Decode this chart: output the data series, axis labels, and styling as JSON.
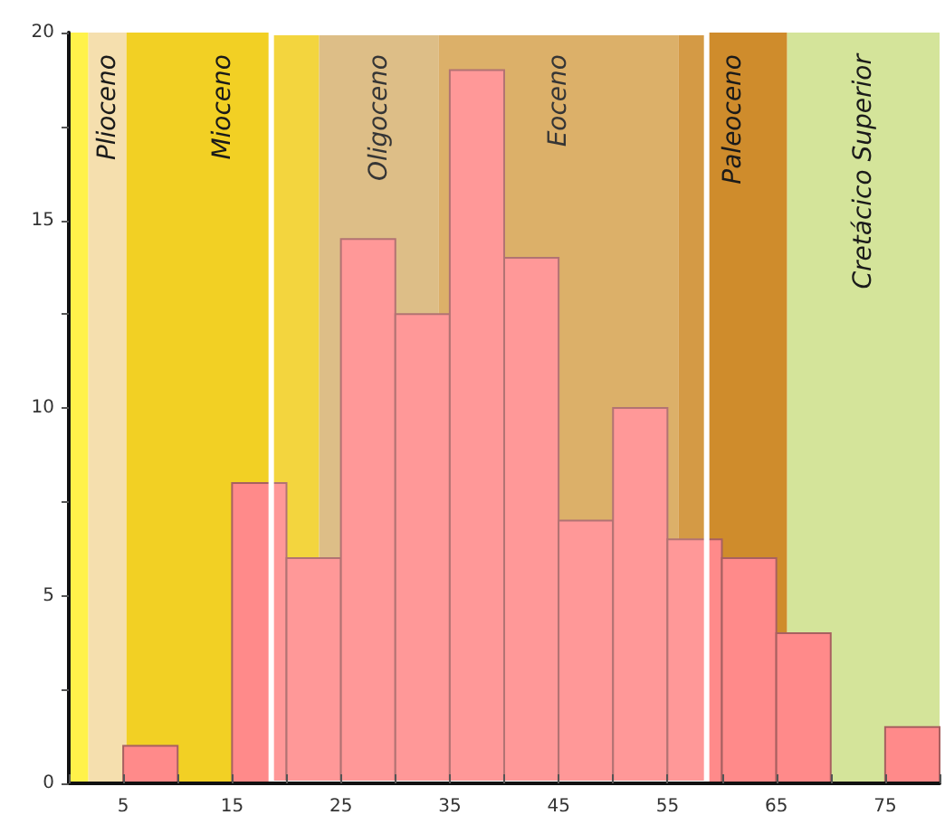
{
  "chart_data": {
    "type": "histogram",
    "bins": [
      0,
      5,
      10,
      15,
      20,
      25,
      30,
      35,
      40,
      45,
      50,
      55,
      60,
      65,
      70,
      75,
      80
    ],
    "values": [
      0,
      1,
      0,
      8,
      6,
      14.5,
      12.5,
      19,
      14,
      7,
      10,
      6.5,
      6,
      4,
      0,
      1.5
    ],
    "color": "#ff8a8a",
    "xlim": [
      0,
      80
    ],
    "xticks": [
      {
        "value": 0,
        "label": null
      },
      5,
      {
        "value": 10,
        "label": null
      },
      15,
      {
        "value": 20,
        "label": null
      },
      25,
      {
        "value": 30,
        "label": null
      },
      35,
      {
        "value": 40,
        "label": null
      },
      45,
      {
        "value": 50,
        "label": null
      },
      55,
      {
        "value": 60,
        "label": null
      },
      65,
      {
        "value": 70,
        "label": null
      },
      75,
      {
        "value": 80,
        "label": null
      }
    ],
    "ylim": [
      0,
      20
    ],
    "yticks": [
      0,
      {
        "value": 2.5,
        "label": null
      },
      5,
      {
        "value": 7.5,
        "label": null
      },
      10,
      {
        "value": 12.5,
        "label": null
      },
      15,
      {
        "value": 17.5,
        "label": null
      },
      20
    ],
    "bands": [
      {
        "axis": "x",
        "from": 0,
        "to": 1.8,
        "color": "#fff24a"
      },
      {
        "axis": "x",
        "from": 1.8,
        "to": 5.3,
        "label": "Plioceno",
        "color": "#f5dfae"
      },
      {
        "axis": "x",
        "from": 5.3,
        "to": 23,
        "label": "Mioceno",
        "color": "#f2d024"
      },
      {
        "axis": "x",
        "from": 23,
        "to": 34,
        "label": "Oligoceno",
        "color": "#d9b677"
      },
      {
        "axis": "x",
        "from": 34,
        "to": 56,
        "label": "Eoceno",
        "color": "#d8a555"
      },
      {
        "axis": "x",
        "from": 56,
        "to": 66,
        "label": "Paleoceno",
        "color": "#cf8c2c"
      },
      {
        "axis": "x",
        "from": 66,
        "to": 80,
        "label": "Cretácico Superior",
        "color": "#d4e49a"
      },
      {
        "axis": "x",
        "from": 18.6,
        "to": 58.6,
        "color": "#ffffff"
      }
    ],
    "grid": false
  }
}
